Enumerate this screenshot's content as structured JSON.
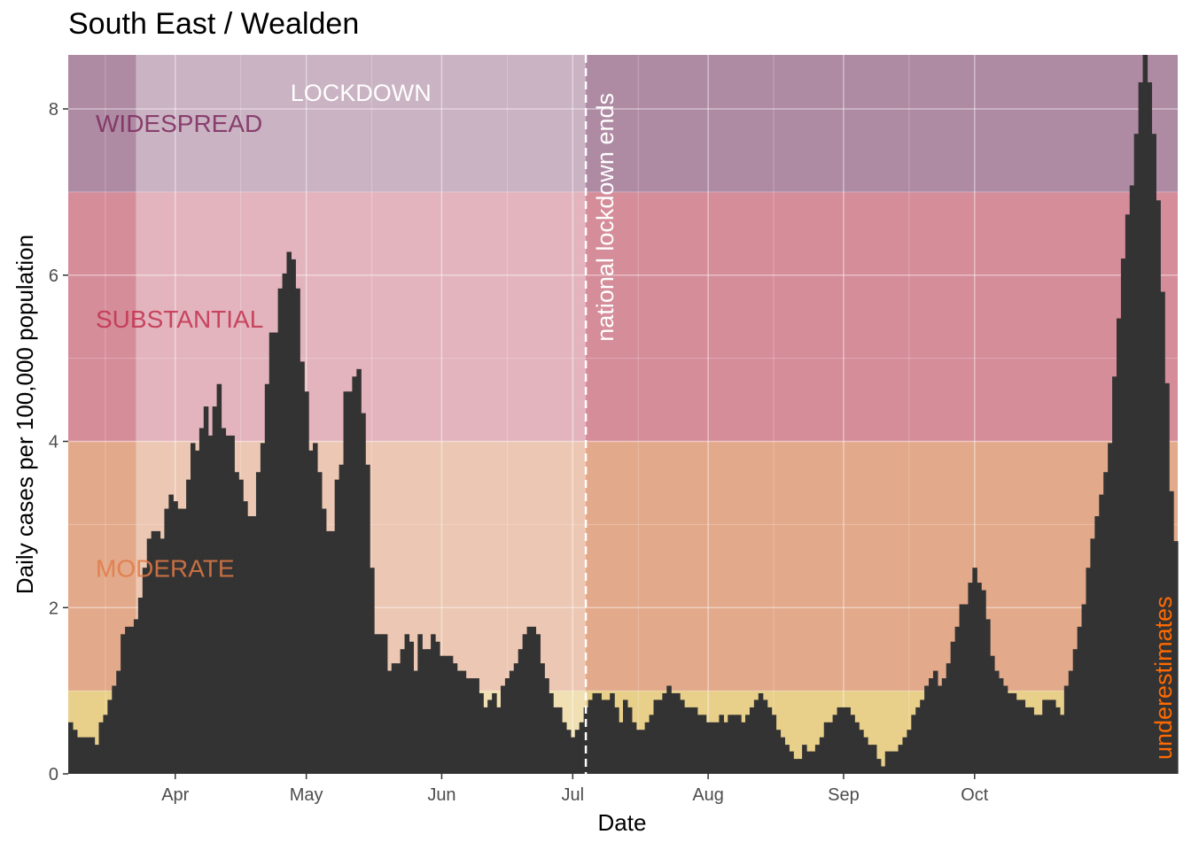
{
  "chart_data": {
    "type": "bar",
    "title": "South East / Wealden",
    "xlabel": "Date",
    "ylabel": "Daily cases per 100,000 population",
    "ylim": [
      0,
      8.65
    ],
    "x_start_date": "2020-03-08",
    "x_end_date": "2020-10-13",
    "y_ticks": [
      0,
      2,
      4,
      6,
      8
    ],
    "x_ticks": [
      {
        "date": "2020-04-01",
        "label": "Apr"
      },
      {
        "date": "2020-05-01",
        "label": "May"
      },
      {
        "date": "2020-06-01",
        "label": "Jun"
      },
      {
        "date": "2020-07-01",
        "label": "Jul"
      },
      {
        "date": "2020-08-01",
        "label": "Aug"
      },
      {
        "date": "2020-09-01",
        "label": "Sep"
      },
      {
        "date": "2020-10-01",
        "label": "Oct"
      }
    ],
    "bar_color": "#333333",
    "zones": [
      {
        "name": "low",
        "from": 0,
        "to": 1,
        "color": "#e8cf8a",
        "label": ""
      },
      {
        "name": "moderate",
        "from": 1,
        "to": 4,
        "color": "#e2a98a",
        "label": "MODERATE",
        "label_color": "#e07a46"
      },
      {
        "name": "substantial",
        "from": 4,
        "to": 7,
        "color": "#d58d9a",
        "label": "SUBSTANTIAL",
        "label_color": "#c2304f"
      },
      {
        "name": "widespread",
        "from": 7,
        "to": 8.65,
        "color": "#ae8aa3",
        "label": "WIDESPREAD",
        "label_color": "#7c2a5e"
      }
    ],
    "lockdown": {
      "start": "2020-03-23",
      "end": "2020-07-04",
      "label": "LOCKDOWN",
      "color": "#ffffff",
      "opacity": 0.35
    },
    "vline": {
      "date": "2020-07-04",
      "label": "national lockdown ends",
      "color": "#ffffff"
    },
    "underestimates_label": "underestimates",
    "underestimates_color": "#ff6a00",
    "values": [
      0.62,
      0.53,
      0.44,
      0.44,
      0.44,
      0.44,
      0.35,
      0.62,
      0.71,
      0.89,
      1.06,
      1.24,
      1.68,
      1.77,
      1.77,
      1.86,
      2.12,
      2.48,
      2.83,
      2.92,
      2.92,
      2.83,
      3.19,
      3.36,
      3.28,
      3.19,
      3.19,
      3.54,
      3.98,
      3.89,
      4.16,
      4.42,
      4.07,
      4.42,
      4.69,
      4.16,
      4.07,
      4.07,
      3.63,
      3.54,
      3.28,
      3.1,
      3.1,
      3.63,
      3.98,
      4.69,
      5.31,
      5.31,
      5.84,
      6.02,
      6.28,
      6.19,
      5.84,
      4.96,
      4.6,
      3.89,
      3.98,
      3.63,
      3.19,
      2.92,
      2.92,
      3.54,
      3.72,
      4.6,
      4.6,
      4.78,
      4.87,
      4.34,
      3.72,
      2.48,
      1.68,
      1.68,
      1.68,
      1.24,
      1.33,
      1.33,
      1.5,
      1.68,
      1.59,
      1.24,
      1.68,
      1.5,
      1.5,
      1.68,
      1.59,
      1.42,
      1.42,
      1.42,
      1.33,
      1.24,
      1.24,
      1.15,
      1.15,
      1.15,
      0.97,
      0.8,
      0.89,
      0.97,
      0.8,
      1.06,
      1.15,
      1.24,
      1.33,
      1.5,
      1.68,
      1.77,
      1.77,
      1.68,
      1.33,
      1.15,
      0.97,
      0.8,
      0.8,
      0.62,
      0.53,
      0.44,
      0.53,
      0.62,
      0.8,
      0.89,
      0.97,
      0.97,
      0.89,
      0.89,
      0.97,
      0.8,
      0.62,
      0.89,
      0.8,
      0.62,
      0.53,
      0.53,
      0.62,
      0.71,
      0.89,
      0.89,
      0.97,
      1.06,
      0.97,
      0.97,
      0.89,
      0.8,
      0.8,
      0.8,
      0.71,
      0.71,
      0.62,
      0.62,
      0.62,
      0.71,
      0.62,
      0.71,
      0.71,
      0.71,
      0.62,
      0.71,
      0.8,
      0.89,
      0.97,
      0.89,
      0.8,
      0.71,
      0.53,
      0.44,
      0.35,
      0.27,
      0.18,
      0.18,
      0.35,
      0.27,
      0.27,
      0.35,
      0.44,
      0.62,
      0.62,
      0.71,
      0.8,
      0.8,
      0.8,
      0.71,
      0.62,
      0.53,
      0.44,
      0.35,
      0.35,
      0.18,
      0.09,
      0.27,
      0.27,
      0.27,
      0.35,
      0.44,
      0.53,
      0.71,
      0.8,
      0.89,
      1.06,
      1.15,
      1.24,
      1.06,
      1.15,
      1.33,
      1.59,
      1.77,
      2.04,
      2.04,
      2.3,
      2.48,
      2.3,
      2.21,
      1.86,
      1.42,
      1.24,
      1.15,
      1.06,
      0.97,
      0.97,
      0.89,
      0.89,
      0.8,
      0.8,
      0.71,
      0.71,
      0.89,
      0.89,
      0.89,
      0.8,
      0.71,
      1.06,
      1.24,
      1.5,
      1.77,
      2.04,
      2.48,
      2.83,
      3.1,
      3.36,
      3.63,
      3.98,
      4.78,
      5.48,
      6.2,
      6.73,
      7.08,
      7.7,
      8.32,
      8.65,
      8.32,
      7.7,
      6.9,
      5.8,
      4.7,
      3.4,
      2.8
    ]
  }
}
